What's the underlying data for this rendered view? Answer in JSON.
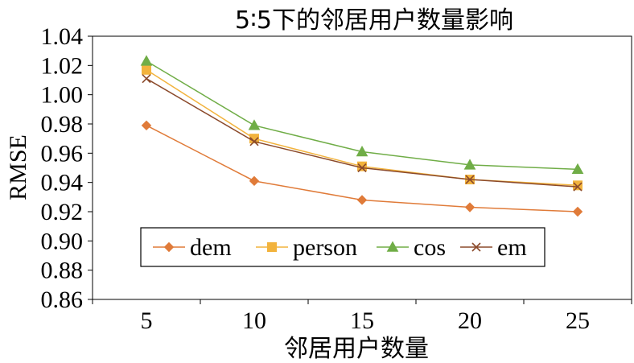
{
  "chart_data": {
    "type": "line",
    "title": "5∶5下的邻居用户数量影响",
    "xlabel": "邻居用户数量",
    "ylabel": "RMSE",
    "categories": [
      "5",
      "10",
      "15",
      "20",
      "25"
    ],
    "ylim": [
      0.86,
      1.04
    ],
    "yticks": [
      "0.86",
      "0.88",
      "0.90",
      "0.92",
      "0.94",
      "0.96",
      "0.98",
      "1.00",
      "1.02",
      "1.04"
    ],
    "legend_position": "lower-center",
    "grid": false,
    "series": [
      {
        "name": "dem",
        "values": [
          0.979,
          0.941,
          0.928,
          0.923,
          0.92
        ],
        "color": "#e07b39",
        "marker": "diamond"
      },
      {
        "name": "person",
        "values": [
          1.017,
          0.97,
          0.951,
          0.942,
          0.938
        ],
        "color": "#f2b33d",
        "marker": "square"
      },
      {
        "name": "cos",
        "values": [
          1.023,
          0.979,
          0.961,
          0.952,
          0.949
        ],
        "color": "#70ad47",
        "marker": "triangle"
      },
      {
        "name": "em",
        "values": [
          1.011,
          0.968,
          0.95,
          0.942,
          0.937
        ],
        "color": "#8b4a2b",
        "marker": "x"
      }
    ]
  }
}
